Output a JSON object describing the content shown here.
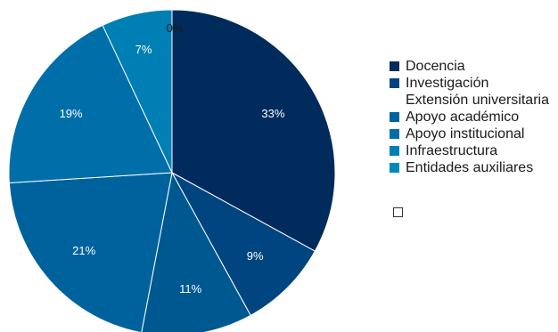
{
  "chart_data": {
    "type": "pie",
    "title": "",
    "categories": [
      "Docencia",
      "Investigación",
      "Extensión universitaria",
      "Apoyo académico",
      "Apoyo institucional",
      "Infraestructura",
      "Entidades auxiliares"
    ],
    "slices": [
      {
        "name": "Docencia",
        "value": 33,
        "label": "33%",
        "color": "#002b5c"
      },
      {
        "name": "Investigación",
        "value": 9,
        "label": "9%",
        "color": "#00457f"
      },
      {
        "name": "Extensión universitaria",
        "value": 11,
        "label": "11%",
        "color": "#005891"
      },
      {
        "name": "Apoyo académico",
        "value": 21,
        "label": "21%",
        "color": "#00629d"
      },
      {
        "name": "Apoyo institucional",
        "value": 19,
        "label": "19%",
        "color": "#006ea8"
      },
      {
        "name": "Infraestructura",
        "value": 7,
        "label": "7%",
        "color": "#007fb5"
      },
      {
        "name": "Entidades auxiliares",
        "value": 0,
        "label": "0%",
        "color": "#0089bd"
      }
    ],
    "legend_position": "right"
  }
}
